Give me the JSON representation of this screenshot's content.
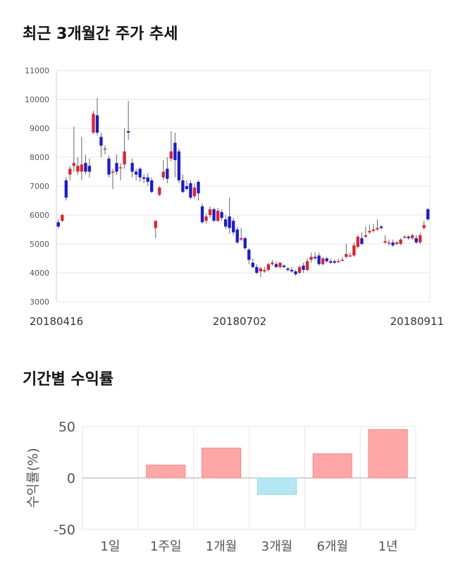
{
  "titles": {
    "stock": "최근 3개월간 주가 추세",
    "returns": "기간별 수익률"
  },
  "colors": {
    "up": "#e0222b",
    "down": "#1a1ad6",
    "wick": "#666666",
    "grid": "#e6e6e6",
    "bar_positive": "#ffa6a6",
    "bar_negative": "#b3e8f2"
  },
  "chart_data": [
    {
      "type": "candlestick",
      "title": "최근 3개월간 주가 추세",
      "ylim": [
        3000,
        11000
      ],
      "y_ticks": [
        3000,
        4000,
        5000,
        6000,
        7000,
        8000,
        9000,
        10000,
        11000
      ],
      "x_tick_labels": [
        "20180416",
        "20180702",
        "20180911"
      ],
      "grid": true,
      "candles": [
        [
          5750,
          5600,
          5850,
          5550
        ],
        [
          5800,
          6000,
          6050,
          5750
        ],
        [
          7200,
          6600,
          7300,
          6500
        ],
        [
          7400,
          7600,
          7700,
          7200
        ],
        [
          7700,
          7800,
          9050,
          7500
        ],
        [
          7500,
          7700,
          8000,
          7400
        ],
        [
          7500,
          7750,
          8700,
          7200
        ],
        [
          7800,
          7500,
          8100,
          7400
        ],
        [
          7700,
          7500,
          7950,
          7300
        ],
        [
          8850,
          9500,
          9600,
          8800
        ],
        [
          9450,
          8850,
          10050,
          8750
        ],
        [
          8700,
          8400,
          8850,
          8000
        ],
        [
          8300,
          8300,
          8400,
          8100
        ],
        [
          7950,
          7400,
          8050,
          7300
        ],
        [
          7500,
          7500,
          7600,
          6900
        ],
        [
          7800,
          7500,
          8100,
          7400
        ],
        [
          7650,
          7650,
          7800,
          7200
        ],
        [
          7750,
          8200,
          9000,
          7600
        ],
        [
          8900,
          8850,
          9950,
          8600
        ],
        [
          7800,
          7500,
          7950,
          7300
        ],
        [
          7500,
          7400,
          7600,
          7200
        ],
        [
          7600,
          7300,
          7650,
          7150
        ],
        [
          7300,
          7250,
          7400,
          7100
        ],
        [
          7300,
          7150,
          7450,
          7000
        ],
        [
          7200,
          6800,
          7300,
          6750
        ],
        [
          5550,
          5800,
          5800,
          5200
        ],
        [
          6700,
          6950,
          7000,
          6650
        ],
        [
          7300,
          7500,
          7900,
          7200
        ],
        [
          7600,
          7250,
          8000,
          7100
        ],
        [
          7950,
          8200,
          8900,
          7850
        ],
        [
          8500,
          7900,
          8850,
          7300
        ],
        [
          8200,
          7200,
          8300,
          7100
        ],
        [
          7200,
          6800,
          7400,
          6750
        ],
        [
          7000,
          6900,
          7200,
          6850
        ],
        [
          7100,
          6600,
          7200,
          6550
        ],
        [
          6650,
          6950,
          7100,
          6550
        ],
        [
          7150,
          6750,
          7200,
          6500
        ],
        [
          6300,
          5750,
          6400,
          5700
        ],
        [
          5800,
          5950,
          6050,
          5700
        ],
        [
          6000,
          6200,
          6300,
          5900
        ],
        [
          6200,
          5800,
          6250,
          5750
        ],
        [
          5800,
          6150,
          6250,
          5750
        ],
        [
          6100,
          5900,
          6200,
          5800
        ],
        [
          5850,
          5600,
          6000,
          5500
        ],
        [
          5950,
          5550,
          6600,
          5350
        ],
        [
          5800,
          5400,
          5900,
          5300
        ],
        [
          5500,
          5050,
          5600,
          5000
        ],
        [
          5150,
          5200,
          5550,
          5100
        ],
        [
          5200,
          4850,
          5250,
          4800
        ],
        [
          4800,
          4450,
          4850,
          4300
        ],
        [
          4350,
          4200,
          4500,
          4150
        ],
        [
          4200,
          4000,
          4300,
          3950
        ],
        [
          4050,
          4150,
          4200,
          3850
        ],
        [
          4050,
          4100,
          4200,
          4000
        ],
        [
          4100,
          4300,
          4350,
          4050
        ],
        [
          4300,
          4350,
          4450,
          4250
        ],
        [
          4300,
          4200,
          4400,
          4150
        ],
        [
          4200,
          4350,
          4350,
          4150
        ],
        [
          4250,
          4200,
          4300,
          4150
        ],
        [
          4150,
          4100,
          4200,
          4050
        ],
        [
          4100,
          4050,
          4200,
          4000
        ],
        [
          4050,
          3950,
          4100,
          3900
        ],
        [
          4000,
          4200,
          4250,
          3950
        ],
        [
          4250,
          4100,
          4350,
          4000
        ],
        [
          4100,
          4400,
          4500,
          4050
        ],
        [
          4450,
          4550,
          4700,
          4350
        ],
        [
          4550,
          4500,
          4700,
          4450
        ],
        [
          4600,
          4300,
          4700,
          4250
        ],
        [
          4300,
          4500,
          4550,
          4250
        ],
        [
          4500,
          4400,
          4550,
          4350
        ],
        [
          4400,
          4350,
          4500,
          4300
        ],
        [
          4400,
          4350,
          4450,
          4300
        ],
        [
          4400,
          4400,
          4500,
          4350
        ],
        [
          4450,
          4450,
          4550,
          4400
        ],
        [
          4550,
          4650,
          5000,
          4500
        ],
        [
          4600,
          4600,
          4700,
          4550
        ],
        [
          4600,
          4950,
          5050,
          4550
        ],
        [
          4900,
          5250,
          5300,
          4850
        ],
        [
          5200,
          5000,
          5400,
          4950
        ],
        [
          5250,
          5300,
          5600,
          5200
        ],
        [
          5400,
          5450,
          5650,
          5350
        ],
        [
          5450,
          5500,
          5700,
          5400
        ],
        [
          5500,
          5550,
          5850,
          5450
        ],
        [
          5600,
          5550,
          5650,
          5500
        ],
        [
          5050,
          5100,
          5300,
          5000
        ],
        [
          5050,
          5050,
          5150,
          4950
        ],
        [
          5050,
          4950,
          5150,
          4900
        ],
        [
          5000,
          5050,
          5100,
          4950
        ],
        [
          5000,
          5150,
          5200,
          4950
        ],
        [
          5250,
          5250,
          5300,
          5200
        ],
        [
          5250,
          5200,
          5300,
          5150
        ],
        [
          5200,
          5300,
          5350,
          5150
        ],
        [
          5200,
          5050,
          5300,
          5000
        ],
        [
          5050,
          5300,
          5400,
          5000
        ],
        [
          5550,
          5650,
          5800,
          5500
        ],
        [
          6200,
          5850,
          6250,
          5800
        ]
      ]
    },
    {
      "type": "bar",
      "title": "기간별 수익률",
      "ylabel": "수익률(%)",
      "categories": [
        "1일",
        "1주일",
        "1개월",
        "3개월",
        "6개월",
        "1년"
      ],
      "values": [
        0,
        12.5,
        29,
        -16,
        23.5,
        47
      ],
      "ylim": [
        -50,
        50
      ],
      "y_ticks": [
        50,
        0,
        -50
      ],
      "grid": true
    }
  ]
}
